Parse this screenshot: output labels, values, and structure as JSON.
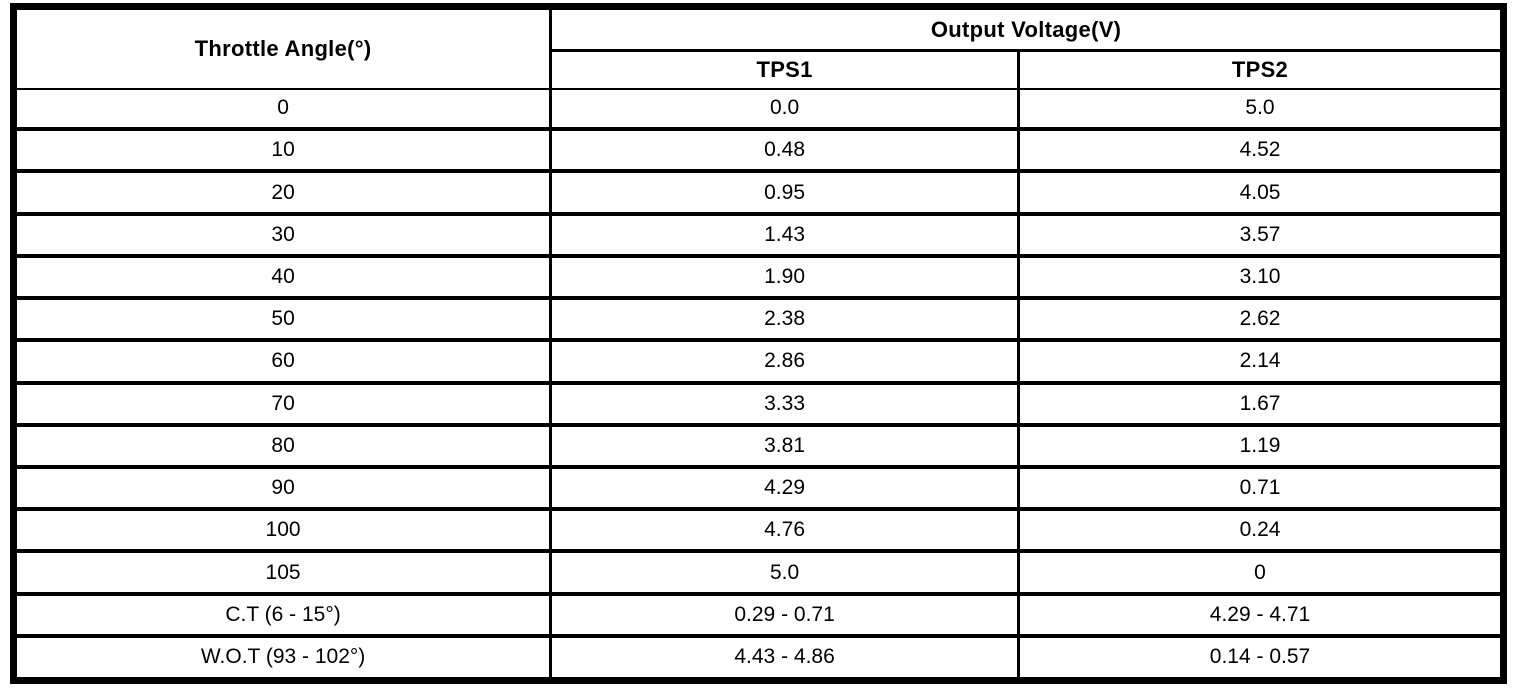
{
  "table": {
    "angle_header": "Throttle Angle(°)",
    "group_header": "Output Voltage(V)",
    "sub_headers": [
      "TPS1",
      "TPS2"
    ],
    "rows": [
      {
        "angle": "0",
        "tps1": "0.0",
        "tps2": "5.0"
      },
      {
        "angle": "10",
        "tps1": "0.48",
        "tps2": "4.52"
      },
      {
        "angle": "20",
        "tps1": "0.95",
        "tps2": "4.05"
      },
      {
        "angle": "30",
        "tps1": "1.43",
        "tps2": "3.57"
      },
      {
        "angle": "40",
        "tps1": "1.90",
        "tps2": "3.10"
      },
      {
        "angle": "50",
        "tps1": "2.38",
        "tps2": "2.62"
      },
      {
        "angle": "60",
        "tps1": "2.86",
        "tps2": "2.14"
      },
      {
        "angle": "70",
        "tps1": "3.33",
        "tps2": "1.67"
      },
      {
        "angle": "80",
        "tps1": "3.81",
        "tps2": "1.19"
      },
      {
        "angle": "90",
        "tps1": "4.29",
        "tps2": "0.71"
      },
      {
        "angle": "100",
        "tps1": "4.76",
        "tps2": "0.24"
      },
      {
        "angle": "105",
        "tps1": "5.0",
        "tps2": "0"
      },
      {
        "angle": "C.T (6 - 15°)",
        "tps1": "0.29 - 0.71",
        "tps2": "4.29 - 4.71"
      },
      {
        "angle": "W.O.T (93 - 102°)",
        "tps1": "4.43 - 4.86",
        "tps2": "0.14 - 0.57"
      }
    ],
    "colors": {
      "border": "#000000",
      "background": "#ffffff",
      "text": "#000000"
    }
  },
  "chart_data": {
    "type": "table",
    "columns": [
      "Throttle Angle(°)",
      "Output Voltage(V) TPS1",
      "Output Voltage(V) TPS2"
    ],
    "rows": [
      [
        "0",
        "0.0",
        "5.0"
      ],
      [
        "10",
        "0.48",
        "4.52"
      ],
      [
        "20",
        "0.95",
        "4.05"
      ],
      [
        "30",
        "1.43",
        "3.57"
      ],
      [
        "40",
        "1.90",
        "3.10"
      ],
      [
        "50",
        "2.38",
        "2.62"
      ],
      [
        "60",
        "2.86",
        "2.14"
      ],
      [
        "70",
        "3.33",
        "1.67"
      ],
      [
        "80",
        "3.81",
        "1.19"
      ],
      [
        "90",
        "4.29",
        "0.71"
      ],
      [
        "100",
        "4.76",
        "0.24"
      ],
      [
        "105",
        "5.0",
        "0"
      ],
      [
        "C.T (6 - 15°)",
        "0.29 - 0.71",
        "4.29 - 4.71"
      ],
      [
        "W.O.T (93 - 102°)",
        "4.43 - 4.86",
        "0.14 - 0.57"
      ]
    ]
  }
}
